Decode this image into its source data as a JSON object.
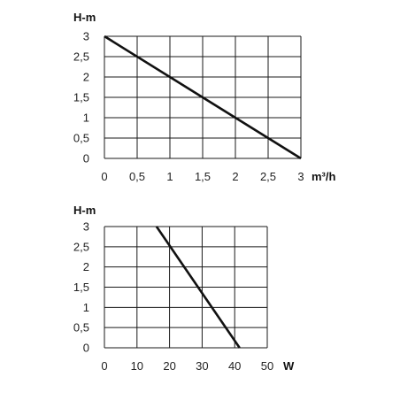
{
  "chart_data": [
    {
      "type": "line",
      "ylabel": "H-m",
      "xlabel": "m³/h",
      "xlim": [
        0,
        3
      ],
      "ylim": [
        0,
        3
      ],
      "x_ticks": [
        "0",
        "0,5",
        "1",
        "1,5",
        "2",
        "2,5",
        "3"
      ],
      "y_ticks": [
        "0",
        "0,5",
        "1",
        "1,5",
        "2",
        "2,5",
        "3"
      ],
      "grid": true,
      "series": [
        {
          "x": [
            0,
            3
          ],
          "y": [
            3,
            0
          ]
        }
      ]
    },
    {
      "type": "line",
      "ylabel": "H-m",
      "xlabel": "W",
      "xlim": [
        0,
        50
      ],
      "ylim": [
        0,
        3
      ],
      "x_ticks": [
        "0",
        "10",
        "20",
        "30",
        "40",
        "50"
      ],
      "y_ticks": [
        "0",
        "0,5",
        "1",
        "1,5",
        "2",
        "2,5",
        "3"
      ],
      "grid": true,
      "series": [
        {
          "x": [
            16,
            41.5
          ],
          "y": [
            3,
            0
          ]
        }
      ]
    }
  ]
}
